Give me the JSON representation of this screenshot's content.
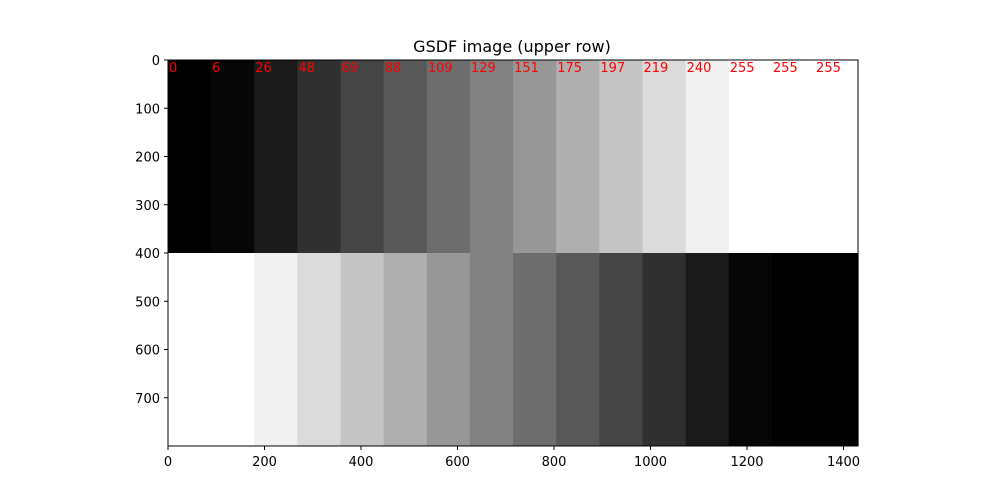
{
  "chart_data": {
    "type": "heatmap",
    "title": "GSDF image (upper row)",
    "xlim": [
      0,
      1430
    ],
    "ylim": [
      800,
      0
    ],
    "x_ticks": [
      0,
      200,
      400,
      600,
      800,
      1000,
      1200,
      1400
    ],
    "y_ticks": [
      0,
      100,
      200,
      300,
      400,
      500,
      600,
      700
    ],
    "band_width": 89.4,
    "row_split": 400,
    "upper_row": [
      0,
      6,
      26,
      48,
      69,
      88,
      109,
      129,
      151,
      175,
      197,
      219,
      240,
      255,
      255,
      255
    ],
    "lower_row": [
      255,
      255,
      240,
      219,
      197,
      175,
      151,
      129,
      109,
      88,
      69,
      48,
      26,
      6,
      0,
      0
    ],
    "label_color": "#ff0000"
  }
}
